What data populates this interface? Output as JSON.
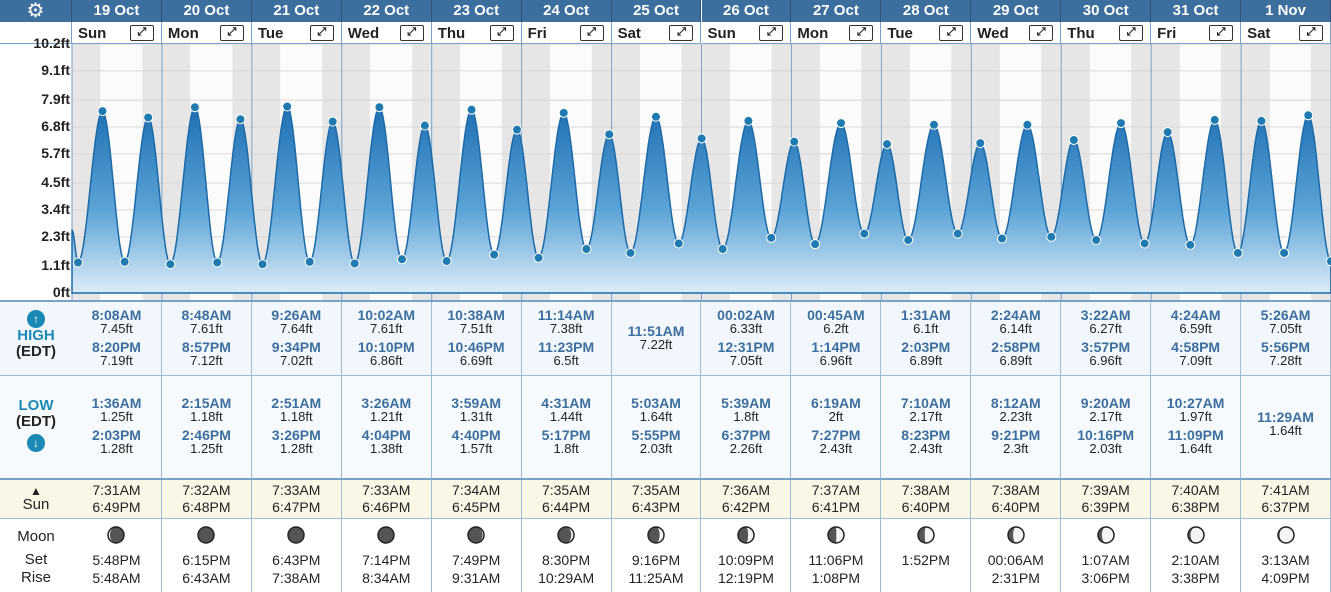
{
  "header": {
    "settings_icon": "gear-icon",
    "expand_icon": "expand-arrows-icon",
    "dates": [
      "19 Oct",
      "20 Oct",
      "21 Oct",
      "22 Oct",
      "23 Oct",
      "24 Oct",
      "25 Oct",
      "26 Oct",
      "27 Oct",
      "28 Oct",
      "29 Oct",
      "30 Oct",
      "31 Oct",
      "1 Nov"
    ],
    "days": [
      "Sun",
      "Mon",
      "Tue",
      "Wed",
      "Thu",
      "Fri",
      "Sat",
      "Sun",
      "Mon",
      "Tue",
      "Wed",
      "Thu",
      "Fri",
      "Sat"
    ]
  },
  "chart_data": {
    "type": "area",
    "ylabel": "",
    "y_ticks": [
      "0ft",
      "1.1ft",
      "2.3ft",
      "3.4ft",
      "4.5ft",
      "5.7ft",
      "6.8ft",
      "7.9ft",
      "9.1ft",
      "10.2ft"
    ],
    "ylim": [
      0,
      10.2
    ],
    "x_range_days": [
      "19 Oct",
      "1 Nov"
    ],
    "series": [
      {
        "points": [
          {
            "day": 0,
            "time": "00:00",
            "ft": 2.6
          },
          {
            "day": 0,
            "time": "01:36",
            "ft": 1.25
          },
          {
            "day": 0,
            "time": "08:08",
            "ft": 7.45
          },
          {
            "day": 0,
            "time": "14:03",
            "ft": 1.28
          },
          {
            "day": 0,
            "time": "20:20",
            "ft": 7.19
          },
          {
            "day": 1,
            "time": "02:15",
            "ft": 1.18
          },
          {
            "day": 1,
            "time": "08:48",
            "ft": 7.61
          },
          {
            "day": 1,
            "time": "14:46",
            "ft": 1.25
          },
          {
            "day": 1,
            "time": "20:57",
            "ft": 7.12
          },
          {
            "day": 2,
            "time": "02:51",
            "ft": 1.18
          },
          {
            "day": 2,
            "time": "09:26",
            "ft": 7.64
          },
          {
            "day": 2,
            "time": "15:26",
            "ft": 1.28
          },
          {
            "day": 2,
            "time": "21:34",
            "ft": 7.02
          },
          {
            "day": 3,
            "time": "03:26",
            "ft": 1.21
          },
          {
            "day": 3,
            "time": "10:02",
            "ft": 7.61
          },
          {
            "day": 3,
            "time": "16:04",
            "ft": 1.38
          },
          {
            "day": 3,
            "time": "22:10",
            "ft": 6.86
          },
          {
            "day": 4,
            "time": "03:59",
            "ft": 1.31
          },
          {
            "day": 4,
            "time": "10:38",
            "ft": 7.51
          },
          {
            "day": 4,
            "time": "16:40",
            "ft": 1.57
          },
          {
            "day": 4,
            "time": "22:46",
            "ft": 6.69
          },
          {
            "day": 5,
            "time": "04:31",
            "ft": 1.44
          },
          {
            "day": 5,
            "time": "11:14",
            "ft": 7.38
          },
          {
            "day": 5,
            "time": "17:17",
            "ft": 1.8
          },
          {
            "day": 5,
            "time": "23:23",
            "ft": 6.5
          },
          {
            "day": 6,
            "time": "05:03",
            "ft": 1.64
          },
          {
            "day": 6,
            "time": "11:51",
            "ft": 7.22
          },
          {
            "day": 6,
            "time": "17:55",
            "ft": 2.03
          },
          {
            "day": 7,
            "time": "00:02",
            "ft": 6.33
          },
          {
            "day": 7,
            "time": "05:39",
            "ft": 1.8
          },
          {
            "day": 7,
            "time": "12:31",
            "ft": 7.05
          },
          {
            "day": 7,
            "time": "18:37",
            "ft": 2.26
          },
          {
            "day": 8,
            "time": "00:45",
            "ft": 6.2
          },
          {
            "day": 8,
            "time": "06:19",
            "ft": 2
          },
          {
            "day": 8,
            "time": "13:14",
            "ft": 6.96
          },
          {
            "day": 8,
            "time": "19:27",
            "ft": 2.43
          },
          {
            "day": 9,
            "time": "01:31",
            "ft": 6.1
          },
          {
            "day": 9,
            "time": "07:10",
            "ft": 2.17
          },
          {
            "day": 9,
            "time": "14:03",
            "ft": 6.89
          },
          {
            "day": 9,
            "time": "20:23",
            "ft": 2.43
          },
          {
            "day": 10,
            "time": "02:24",
            "ft": 6.14
          },
          {
            "day": 10,
            "time": "08:12",
            "ft": 2.23
          },
          {
            "day": 10,
            "time": "14:58",
            "ft": 6.89
          },
          {
            "day": 10,
            "time": "21:21",
            "ft": 2.3
          },
          {
            "day": 11,
            "time": "03:22",
            "ft": 6.27
          },
          {
            "day": 11,
            "time": "09:20",
            "ft": 2.17
          },
          {
            "day": 11,
            "time": "15:57",
            "ft": 6.96
          },
          {
            "day": 11,
            "time": "22:16",
            "ft": 2.03
          },
          {
            "day": 12,
            "time": "04:24",
            "ft": 6.59
          },
          {
            "day": 12,
            "time": "10:27",
            "ft": 1.97
          },
          {
            "day": 12,
            "time": "16:58",
            "ft": 7.09
          },
          {
            "day": 12,
            "time": "23:09",
            "ft": 1.64
          },
          {
            "day": 13,
            "time": "05:26",
            "ft": 7.05
          },
          {
            "day": 13,
            "time": "11:29",
            "ft": 1.64
          },
          {
            "day": 13,
            "time": "17:56",
            "ft": 7.28
          },
          {
            "day": 13,
            "time": "23:59",
            "ft": 1.3
          }
        ]
      }
    ],
    "grid": true,
    "colors": {
      "fill_top": "#1f6fb2",
      "fill_bottom": "#d9ecf8",
      "marker": "#1f7ab0",
      "night": "#e6e6e6",
      "day": "#fbfbfb"
    }
  },
  "rows": {
    "high_label": "HIGH",
    "high_tz": "(EDT)",
    "high_icon": "arrow-up-circle-icon",
    "low_label": "LOW",
    "low_tz": "(EDT)",
    "low_icon": "arrow-down-circle-icon",
    "sun_label": "Sun",
    "sun_icon": "sunrise-icon",
    "moon_label": "Moon",
    "set_label": "Set",
    "rise_label": "Rise"
  },
  "highs": [
    [
      {
        "t": "8:08AM",
        "h": "7.45ft"
      },
      {
        "t": "8:20PM",
        "h": "7.19ft"
      }
    ],
    [
      {
        "t": "8:48AM",
        "h": "7.61ft"
      },
      {
        "t": "8:57PM",
        "h": "7.12ft"
      }
    ],
    [
      {
        "t": "9:26AM",
        "h": "7.64ft"
      },
      {
        "t": "9:34PM",
        "h": "7.02ft"
      }
    ],
    [
      {
        "t": "10:02AM",
        "h": "7.61ft"
      },
      {
        "t": "10:10PM",
        "h": "6.86ft"
      }
    ],
    [
      {
        "t": "10:38AM",
        "h": "7.51ft"
      },
      {
        "t": "10:46PM",
        "h": "6.69ft"
      }
    ],
    [
      {
        "t": "11:14AM",
        "h": "7.38ft"
      },
      {
        "t": "11:23PM",
        "h": "6.5ft"
      }
    ],
    [
      {
        "t": "11:51AM",
        "h": "7.22ft"
      }
    ],
    [
      {
        "t": "00:02AM",
        "h": "6.33ft"
      },
      {
        "t": "12:31PM",
        "h": "7.05ft"
      }
    ],
    [
      {
        "t": "00:45AM",
        "h": "6.2ft"
      },
      {
        "t": "1:14PM",
        "h": "6.96ft"
      }
    ],
    [
      {
        "t": "1:31AM",
        "h": "6.1ft"
      },
      {
        "t": "2:03PM",
        "h": "6.89ft"
      }
    ],
    [
      {
        "t": "2:24AM",
        "h": "6.14ft"
      },
      {
        "t": "2:58PM",
        "h": "6.89ft"
      }
    ],
    [
      {
        "t": "3:22AM",
        "h": "6.27ft"
      },
      {
        "t": "3:57PM",
        "h": "6.96ft"
      }
    ],
    [
      {
        "t": "4:24AM",
        "h": "6.59ft"
      },
      {
        "t": "4:58PM",
        "h": "7.09ft"
      }
    ],
    [
      {
        "t": "5:26AM",
        "h": "7.05ft"
      },
      {
        "t": "5:56PM",
        "h": "7.28ft"
      }
    ]
  ],
  "lows": [
    [
      {
        "t": "1:36AM",
        "h": "1.25ft"
      },
      {
        "t": "2:03PM",
        "h": "1.28ft"
      }
    ],
    [
      {
        "t": "2:15AM",
        "h": "1.18ft"
      },
      {
        "t": "2:46PM",
        "h": "1.25ft"
      }
    ],
    [
      {
        "t": "2:51AM",
        "h": "1.18ft"
      },
      {
        "t": "3:26PM",
        "h": "1.28ft"
      }
    ],
    [
      {
        "t": "3:26AM",
        "h": "1.21ft"
      },
      {
        "t": "4:04PM",
        "h": "1.38ft"
      }
    ],
    [
      {
        "t": "3:59AM",
        "h": "1.31ft"
      },
      {
        "t": "4:40PM",
        "h": "1.57ft"
      }
    ],
    [
      {
        "t": "4:31AM",
        "h": "1.44ft"
      },
      {
        "t": "5:17PM",
        "h": "1.8ft"
      }
    ],
    [
      {
        "t": "5:03AM",
        "h": "1.64ft"
      },
      {
        "t": "5:55PM",
        "h": "2.03ft"
      }
    ],
    [
      {
        "t": "5:39AM",
        "h": "1.8ft"
      },
      {
        "t": "6:37PM",
        "h": "2.26ft"
      }
    ],
    [
      {
        "t": "6:19AM",
        "h": "2ft"
      },
      {
        "t": "7:27PM",
        "h": "2.43ft"
      }
    ],
    [
      {
        "t": "7:10AM",
        "h": "2.17ft"
      },
      {
        "t": "8:23PM",
        "h": "2.43ft"
      }
    ],
    [
      {
        "t": "8:12AM",
        "h": "2.23ft"
      },
      {
        "t": "9:21PM",
        "h": "2.3ft"
      }
    ],
    [
      {
        "t": "9:20AM",
        "h": "2.17ft"
      },
      {
        "t": "10:16PM",
        "h": "2.03ft"
      }
    ],
    [
      {
        "t": "10:27AM",
        "h": "1.97ft"
      },
      {
        "t": "11:09PM",
        "h": "1.64ft"
      }
    ],
    [
      {
        "t": "11:29AM",
        "h": "1.64ft"
      }
    ]
  ],
  "sun": [
    {
      "rise": "7:31AM",
      "set": "6:49PM"
    },
    {
      "rise": "7:32AM",
      "set": "6:48PM"
    },
    {
      "rise": "7:33AM",
      "set": "6:47PM"
    },
    {
      "rise": "7:33AM",
      "set": "6:46PM"
    },
    {
      "rise": "7:34AM",
      "set": "6:45PM"
    },
    {
      "rise": "7:35AM",
      "set": "6:44PM"
    },
    {
      "rise": "7:35AM",
      "set": "6:43PM"
    },
    {
      "rise": "7:36AM",
      "set": "6:42PM"
    },
    {
      "rise": "7:37AM",
      "set": "6:41PM"
    },
    {
      "rise": "7:38AM",
      "set": "6:40PM"
    },
    {
      "rise": "7:38AM",
      "set": "6:40PM"
    },
    {
      "rise": "7:39AM",
      "set": "6:39PM"
    },
    {
      "rise": "7:40AM",
      "set": "6:38PM"
    },
    {
      "rise": "7:41AM",
      "set": "6:37PM"
    }
  ],
  "moon": [
    {
      "phase": "waning-crescent",
      "illum": 0.12,
      "set": "5:48PM",
      "rise": "5:48AM"
    },
    {
      "phase": "waning-crescent",
      "illum": 0.04,
      "set": "6:15PM",
      "rise": "6:43AM"
    },
    {
      "phase": "new",
      "illum": 0.0,
      "set": "6:43PM",
      "rise": "7:38AM"
    },
    {
      "phase": "waxing-crescent",
      "illum": 0.03,
      "set": "7:14PM",
      "rise": "8:34AM"
    },
    {
      "phase": "waxing-crescent",
      "illum": 0.09,
      "set": "7:49PM",
      "rise": "9:31AM"
    },
    {
      "phase": "waxing-crescent",
      "illum": 0.17,
      "set": "8:30PM",
      "rise": "10:29AM"
    },
    {
      "phase": "waxing-crescent",
      "illum": 0.27,
      "set": "9:16PM",
      "rise": "11:25AM"
    },
    {
      "phase": "waxing-crescent",
      "illum": 0.37,
      "set": "10:09PM",
      "rise": "12:19PM"
    },
    {
      "phase": "first-quarter",
      "illum": 0.48,
      "set": "11:06PM",
      "rise": "1:08PM"
    },
    {
      "phase": "waxing-gibbous",
      "illum": 0.58,
      "set": "",
      "rise": "1:52PM"
    },
    {
      "phase": "waxing-gibbous",
      "illum": 0.68,
      "set": "00:06AM",
      "rise": "2:31PM"
    },
    {
      "phase": "waxing-gibbous",
      "illum": 0.76,
      "set": "1:07AM",
      "rise": "3:06PM"
    },
    {
      "phase": "waxing-gibbous",
      "illum": 0.84,
      "set": "2:10AM",
      "rise": "3:38PM"
    },
    {
      "phase": "waxing-gibbous",
      "illum": 0.9,
      "set": "3:13AM",
      "rise": "4:09PM"
    }
  ]
}
